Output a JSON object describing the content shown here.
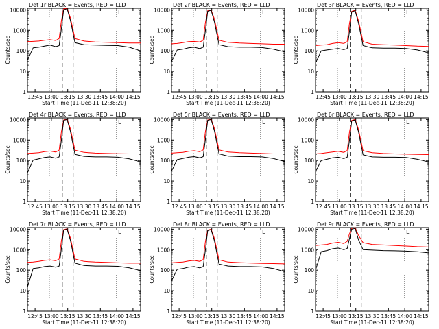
{
  "colors": {
    "events": "#000000",
    "lld": "#ff0000",
    "frame": "#000000",
    "background": "#ffffff"
  },
  "chart_data": [
    {
      "type": "line",
      "title": "Det 1r BLACK = Events, RED = LLD",
      "xlabel": "Start Time (11-Dec-11 12:38:20)",
      "ylabel": "Counts/sec",
      "x_ticks": [
        "12:45",
        "13:00",
        "13:15",
        "13:30",
        "13:45",
        "14:00",
        "14:15"
      ],
      "y_ticks": [
        "1",
        "10",
        "100",
        "1000",
        "10000"
      ],
      "y_scale": "log",
      "ylim": [
        1,
        12000
      ],
      "xlim_minutes": [
        "12:38",
        "14:22"
      ],
      "dotted_lines": [
        "12:58",
        "14:00"
      ],
      "dashed_lines": [
        "13:10",
        "13:20"
      ],
      "flag_text": "L",
      "series": [
        {
          "x": [
            0,
            5,
            10,
            15,
            20,
            25,
            28,
            30,
            32,
            35,
            38,
            42,
            50,
            60,
            70,
            80,
            90,
            100
          ],
          "values": [
            280,
            290,
            300,
            330,
            350,
            320,
            400,
            3000,
            11000,
            12000,
            4000,
            400,
            300,
            270,
            260,
            250,
            240,
            240
          ]
        },
        {
          "x": [
            0,
            5,
            10,
            15,
            20,
            25,
            28,
            30,
            32,
            35,
            38,
            42,
            50,
            60,
            70,
            80,
            90,
            100
          ],
          "values": [
            35,
            140,
            150,
            170,
            190,
            160,
            180,
            1200,
            10000,
            11500,
            3000,
            250,
            200,
            190,
            185,
            180,
            150,
            100
          ]
        }
      ]
    },
    {
      "type": "line",
      "title": "Det 2r BLACK = Events, RED = LLD",
      "xlabel": "Start Time (11-Dec-11 12:38:20)",
      "ylabel": "Counts/sec",
      "x_ticks": [
        "12:45",
        "13:00",
        "13:15",
        "13:30",
        "13:45",
        "14:00",
        "14:15"
      ],
      "y_ticks": [
        "1",
        "10",
        "100",
        "1000",
        "10000"
      ],
      "y_scale": "log",
      "ylim": [
        1,
        12000
      ],
      "xlim_minutes": [
        "12:38",
        "14:22"
      ],
      "dotted_lines": [
        "12:58",
        "14:00"
      ],
      "dashed_lines": [
        "13:10",
        "13:20"
      ],
      "flag_text": "L",
      "series": [
        {
          "x": [
            0,
            5,
            10,
            15,
            20,
            25,
            28,
            30,
            32,
            35,
            38,
            42,
            50,
            60,
            70,
            80,
            90,
            100
          ],
          "values": [
            220,
            230,
            250,
            280,
            290,
            270,
            330,
            2500,
            9000,
            10000,
            3500,
            330,
            260,
            240,
            230,
            220,
            210,
            210
          ]
        },
        {
          "x": [
            0,
            5,
            10,
            15,
            20,
            25,
            28,
            30,
            32,
            35,
            38,
            42,
            50,
            60,
            70,
            80,
            90,
            100
          ],
          "values": [
            30,
            110,
            120,
            140,
            150,
            130,
            150,
            1000,
            8500,
            9500,
            2500,
            200,
            160,
            150,
            150,
            145,
            120,
            90
          ]
        }
      ]
    },
    {
      "type": "line",
      "title": "Det 3r BLACK = Events, RED = LLD",
      "xlabel": "Start Time (11-Dec-11 12:38:20)",
      "ylabel": "Counts/sec",
      "x_ticks": [
        "12:45",
        "13:00",
        "13:15",
        "13:30",
        "13:45",
        "14:00",
        "14:15"
      ],
      "y_ticks": [
        "1",
        "10",
        "100",
        "1000",
        "10000"
      ],
      "y_scale": "log",
      "ylim": [
        1,
        12000
      ],
      "xlim_minutes": [
        "12:38",
        "14:22"
      ],
      "dotted_lines": [
        "12:58",
        "14:00"
      ],
      "dashed_lines": [
        "13:10",
        "13:20"
      ],
      "flag_text": "L",
      "series": [
        {
          "x": [
            0,
            5,
            10,
            15,
            20,
            25,
            28,
            30,
            32,
            35,
            38,
            42,
            50,
            60,
            70,
            80,
            90,
            100
          ],
          "values": [
            180,
            190,
            200,
            230,
            250,
            230,
            280,
            2200,
            8500,
            9500,
            3000,
            280,
            210,
            200,
            190,
            180,
            170,
            165
          ]
        },
        {
          "x": [
            0,
            5,
            10,
            15,
            20,
            25,
            28,
            30,
            32,
            35,
            38,
            42,
            50,
            60,
            70,
            80,
            90,
            100
          ],
          "values": [
            25,
            100,
            110,
            120,
            130,
            115,
            130,
            900,
            8000,
            9000,
            2200,
            180,
            140,
            135,
            135,
            130,
            110,
            80
          ]
        }
      ]
    },
    {
      "type": "line",
      "title": "Det 4r BLACK = Events, RED = LLD",
      "xlabel": "Start Time (11-Dec-11 12:38:20)",
      "ylabel": "Counts/sec",
      "x_ticks": [
        "12:45",
        "13:00",
        "13:15",
        "13:30",
        "13:45",
        "14:00",
        "14:15"
      ],
      "y_ticks": [
        "1",
        "10",
        "100",
        "1000",
        "10000"
      ],
      "y_scale": "log",
      "ylim": [
        1,
        12000
      ],
      "xlim_minutes": [
        "12:38",
        "14:22"
      ],
      "dotted_lines": [
        "12:58",
        "14:00"
      ],
      "dashed_lines": [
        "13:10",
        "13:20"
      ],
      "flag_text": "L",
      "series": [
        {
          "x": [
            0,
            5,
            10,
            15,
            20,
            25,
            28,
            30,
            32,
            35,
            38,
            42,
            50,
            60,
            70,
            80,
            90,
            100
          ],
          "values": [
            220,
            230,
            240,
            270,
            290,
            260,
            320,
            2600,
            9500,
            10500,
            3500,
            320,
            250,
            230,
            220,
            215,
            210,
            210
          ]
        },
        {
          "x": [
            0,
            5,
            10,
            15,
            20,
            25,
            28,
            30,
            32,
            35,
            38,
            42,
            50,
            60,
            70,
            80,
            90,
            100
          ],
          "values": [
            25,
            105,
            120,
            140,
            150,
            130,
            150,
            1000,
            9000,
            10000,
            2600,
            200,
            160,
            150,
            150,
            145,
            120,
            85
          ]
        }
      ]
    },
    {
      "type": "line",
      "title": "Det 5r BLACK = Events, RED = LLD",
      "xlabel": "Start Time (11-Dec-11 12:38:20)",
      "ylabel": "Counts/sec",
      "x_ticks": [
        "12:45",
        "13:00",
        "13:15",
        "13:30",
        "13:45",
        "14:00",
        "14:15"
      ],
      "y_ticks": [
        "1",
        "10",
        "100",
        "1000",
        "10000"
      ],
      "y_scale": "log",
      "ylim": [
        1,
        12000
      ],
      "xlim_minutes": [
        "12:38",
        "14:22"
      ],
      "dotted_lines": [
        "12:58",
        "14:00"
      ],
      "dashed_lines": [
        "13:10",
        "13:20"
      ],
      "flag_text": "L",
      "series": [
        {
          "x": [
            0,
            5,
            10,
            15,
            20,
            25,
            28,
            30,
            32,
            35,
            38,
            42,
            50,
            60,
            70,
            80,
            90,
            100
          ],
          "values": [
            230,
            240,
            250,
            280,
            300,
            270,
            330,
            2700,
            9500,
            10500,
            3600,
            330,
            260,
            240,
            230,
            220,
            210,
            210
          ]
        },
        {
          "x": [
            0,
            5,
            10,
            15,
            20,
            25,
            28,
            30,
            32,
            35,
            38,
            42,
            50,
            60,
            70,
            80,
            90,
            100
          ],
          "values": [
            30,
            110,
            125,
            145,
            155,
            135,
            155,
            1100,
            9000,
            10000,
            2700,
            210,
            165,
            155,
            155,
            150,
            125,
            90
          ]
        }
      ]
    },
    {
      "type": "line",
      "title": "Det 6r BLACK = Events, RED = LLD",
      "xlabel": "Start Time (11-Dec-11 12:38:20)",
      "ylabel": "Counts/sec",
      "x_ticks": [
        "12:45",
        "13:00",
        "13:15",
        "13:30",
        "13:45",
        "14:00",
        "14:15"
      ],
      "y_ticks": [
        "1",
        "10",
        "100",
        "1000",
        "10000"
      ],
      "y_scale": "log",
      "ylim": [
        1,
        12000
      ],
      "xlim_minutes": [
        "12:38",
        "14:22"
      ],
      "dotted_lines": [
        "12:58",
        "14:00"
      ],
      "dashed_lines": [
        "13:10",
        "13:20"
      ],
      "flag_text": "L",
      "series": [
        {
          "x": [
            0,
            5,
            10,
            15,
            20,
            25,
            28,
            30,
            32,
            35,
            38,
            42,
            50,
            60,
            70,
            80,
            90,
            100
          ],
          "values": [
            210,
            220,
            240,
            260,
            280,
            250,
            310,
            2500,
            9000,
            10000,
            3300,
            300,
            240,
            220,
            210,
            205,
            200,
            195
          ]
        },
        {
          "x": [
            0,
            5,
            10,
            15,
            20,
            25,
            28,
            30,
            32,
            35,
            38,
            42,
            50,
            60,
            70,
            80,
            90,
            100
          ],
          "values": [
            28,
            100,
            115,
            135,
            145,
            125,
            145,
            1000,
            8500,
            9500,
            2500,
            190,
            150,
            145,
            145,
            140,
            115,
            85
          ]
        }
      ]
    },
    {
      "type": "line",
      "title": "Det 7r BLACK = Events, RED = LLD",
      "xlabel": "Start Time (11-Dec-11 12:38:20)",
      "ylabel": "Counts/sec",
      "x_ticks": [
        "12:45",
        "13:00",
        "13:15",
        "13:30",
        "13:45",
        "14:00",
        "14:15"
      ],
      "y_ticks": [
        "1",
        "10",
        "100",
        "1000",
        "10000"
      ],
      "y_scale": "log",
      "ylim": [
        1,
        12000
      ],
      "xlim_minutes": [
        "12:38",
        "14:22"
      ],
      "dotted_lines": [
        "12:58",
        "14:00"
      ],
      "dashed_lines": [
        "13:10",
        "13:20"
      ],
      "flag_text": "L",
      "series": [
        {
          "x": [
            0,
            5,
            10,
            15,
            20,
            25,
            28,
            30,
            32,
            35,
            38,
            42,
            50,
            60,
            70,
            80,
            90,
            100
          ],
          "values": [
            240,
            250,
            270,
            300,
            320,
            290,
            350,
            2800,
            9500,
            10500,
            3700,
            350,
            270,
            250,
            240,
            230,
            220,
            220
          ]
        },
        {
          "x": [
            0,
            5,
            10,
            15,
            20,
            25,
            28,
            30,
            32,
            35,
            38,
            42,
            50,
            60,
            70,
            80,
            90,
            100
          ],
          "values": [
            15,
            120,
            130,
            150,
            160,
            140,
            160,
            1100,
            9000,
            10000,
            2800,
            220,
            170,
            160,
            160,
            155,
            130,
            95
          ]
        }
      ]
    },
    {
      "type": "line",
      "title": "Det 8r BLACK = Events, RED = LLD",
      "xlabel": "Start Time (11-Dec-11 12:38:20)",
      "ylabel": "Counts/sec",
      "x_ticks": [
        "12:45",
        "13:00",
        "13:15",
        "13:30",
        "13:45",
        "14:00",
        "14:15"
      ],
      "y_ticks": [
        "1",
        "10",
        "100",
        "1000",
        "10000"
      ],
      "y_scale": "log",
      "ylim": [
        1,
        12000
      ],
      "xlim_minutes": [
        "12:38",
        "14:22"
      ],
      "dotted_lines": [
        "12:58",
        "14:00"
      ],
      "dashed_lines": [
        "13:10",
        "13:20"
      ],
      "flag_text": "L",
      "series": [
        {
          "x": [
            0,
            5,
            10,
            15,
            20,
            25,
            28,
            30,
            32,
            35,
            38,
            42,
            50,
            60,
            70,
            80,
            90,
            100
          ],
          "values": [
            230,
            240,
            250,
            280,
            300,
            270,
            330,
            2600,
            9000,
            10000,
            3500,
            320,
            250,
            235,
            225,
            215,
            210,
            205
          ]
        },
        {
          "x": [
            0,
            5,
            10,
            15,
            20,
            25,
            28,
            30,
            32,
            35,
            38,
            42,
            50,
            60,
            70,
            80,
            90,
            100
          ],
          "values": [
            30,
            110,
            120,
            140,
            150,
            130,
            150,
            1000,
            8500,
            9500,
            2600,
            200,
            160,
            150,
            150,
            145,
            120,
            85
          ]
        }
      ]
    },
    {
      "type": "line",
      "title": "Det 9r BLACK = Events, RED = LLD",
      "xlabel": "Start Time (11-Dec-11 12:38:20)",
      "ylabel": "Counts/sec",
      "x_ticks": [
        "12:45",
        "13:00",
        "13:15",
        "13:30",
        "13:45",
        "14:00",
        "14:15"
      ],
      "y_ticks": [
        "1",
        "10",
        "100",
        "1000",
        "10000"
      ],
      "y_scale": "log",
      "ylim": [
        1,
        12000
      ],
      "xlim_minutes": [
        "12:38",
        "14:22"
      ],
      "dotted_lines": [
        "12:58",
        "14:00"
      ],
      "dashed_lines": [
        "13:10",
        "13:20"
      ],
      "flag_text": "L",
      "series": [
        {
          "x": [
            0,
            5,
            10,
            15,
            20,
            25,
            28,
            30,
            32,
            35,
            38,
            42,
            50,
            60,
            70,
            80,
            90,
            100
          ],
          "values": [
            1600,
            1700,
            1800,
            2100,
            2300,
            2000,
            2600,
            6000,
            11000,
            12000,
            5000,
            2200,
            1800,
            1700,
            1600,
            1500,
            1400,
            1350
          ]
        },
        {
          "x": [
            0,
            5,
            10,
            15,
            20,
            25,
            28,
            30,
            32,
            35,
            38,
            42,
            50,
            60,
            70,
            80,
            90,
            100
          ],
          "values": [
            100,
            800,
            900,
            1100,
            1200,
            1000,
            1150,
            3500,
            10000,
            11000,
            3000,
            1000,
            950,
            900,
            880,
            850,
            800,
            700
          ]
        }
      ]
    }
  ]
}
